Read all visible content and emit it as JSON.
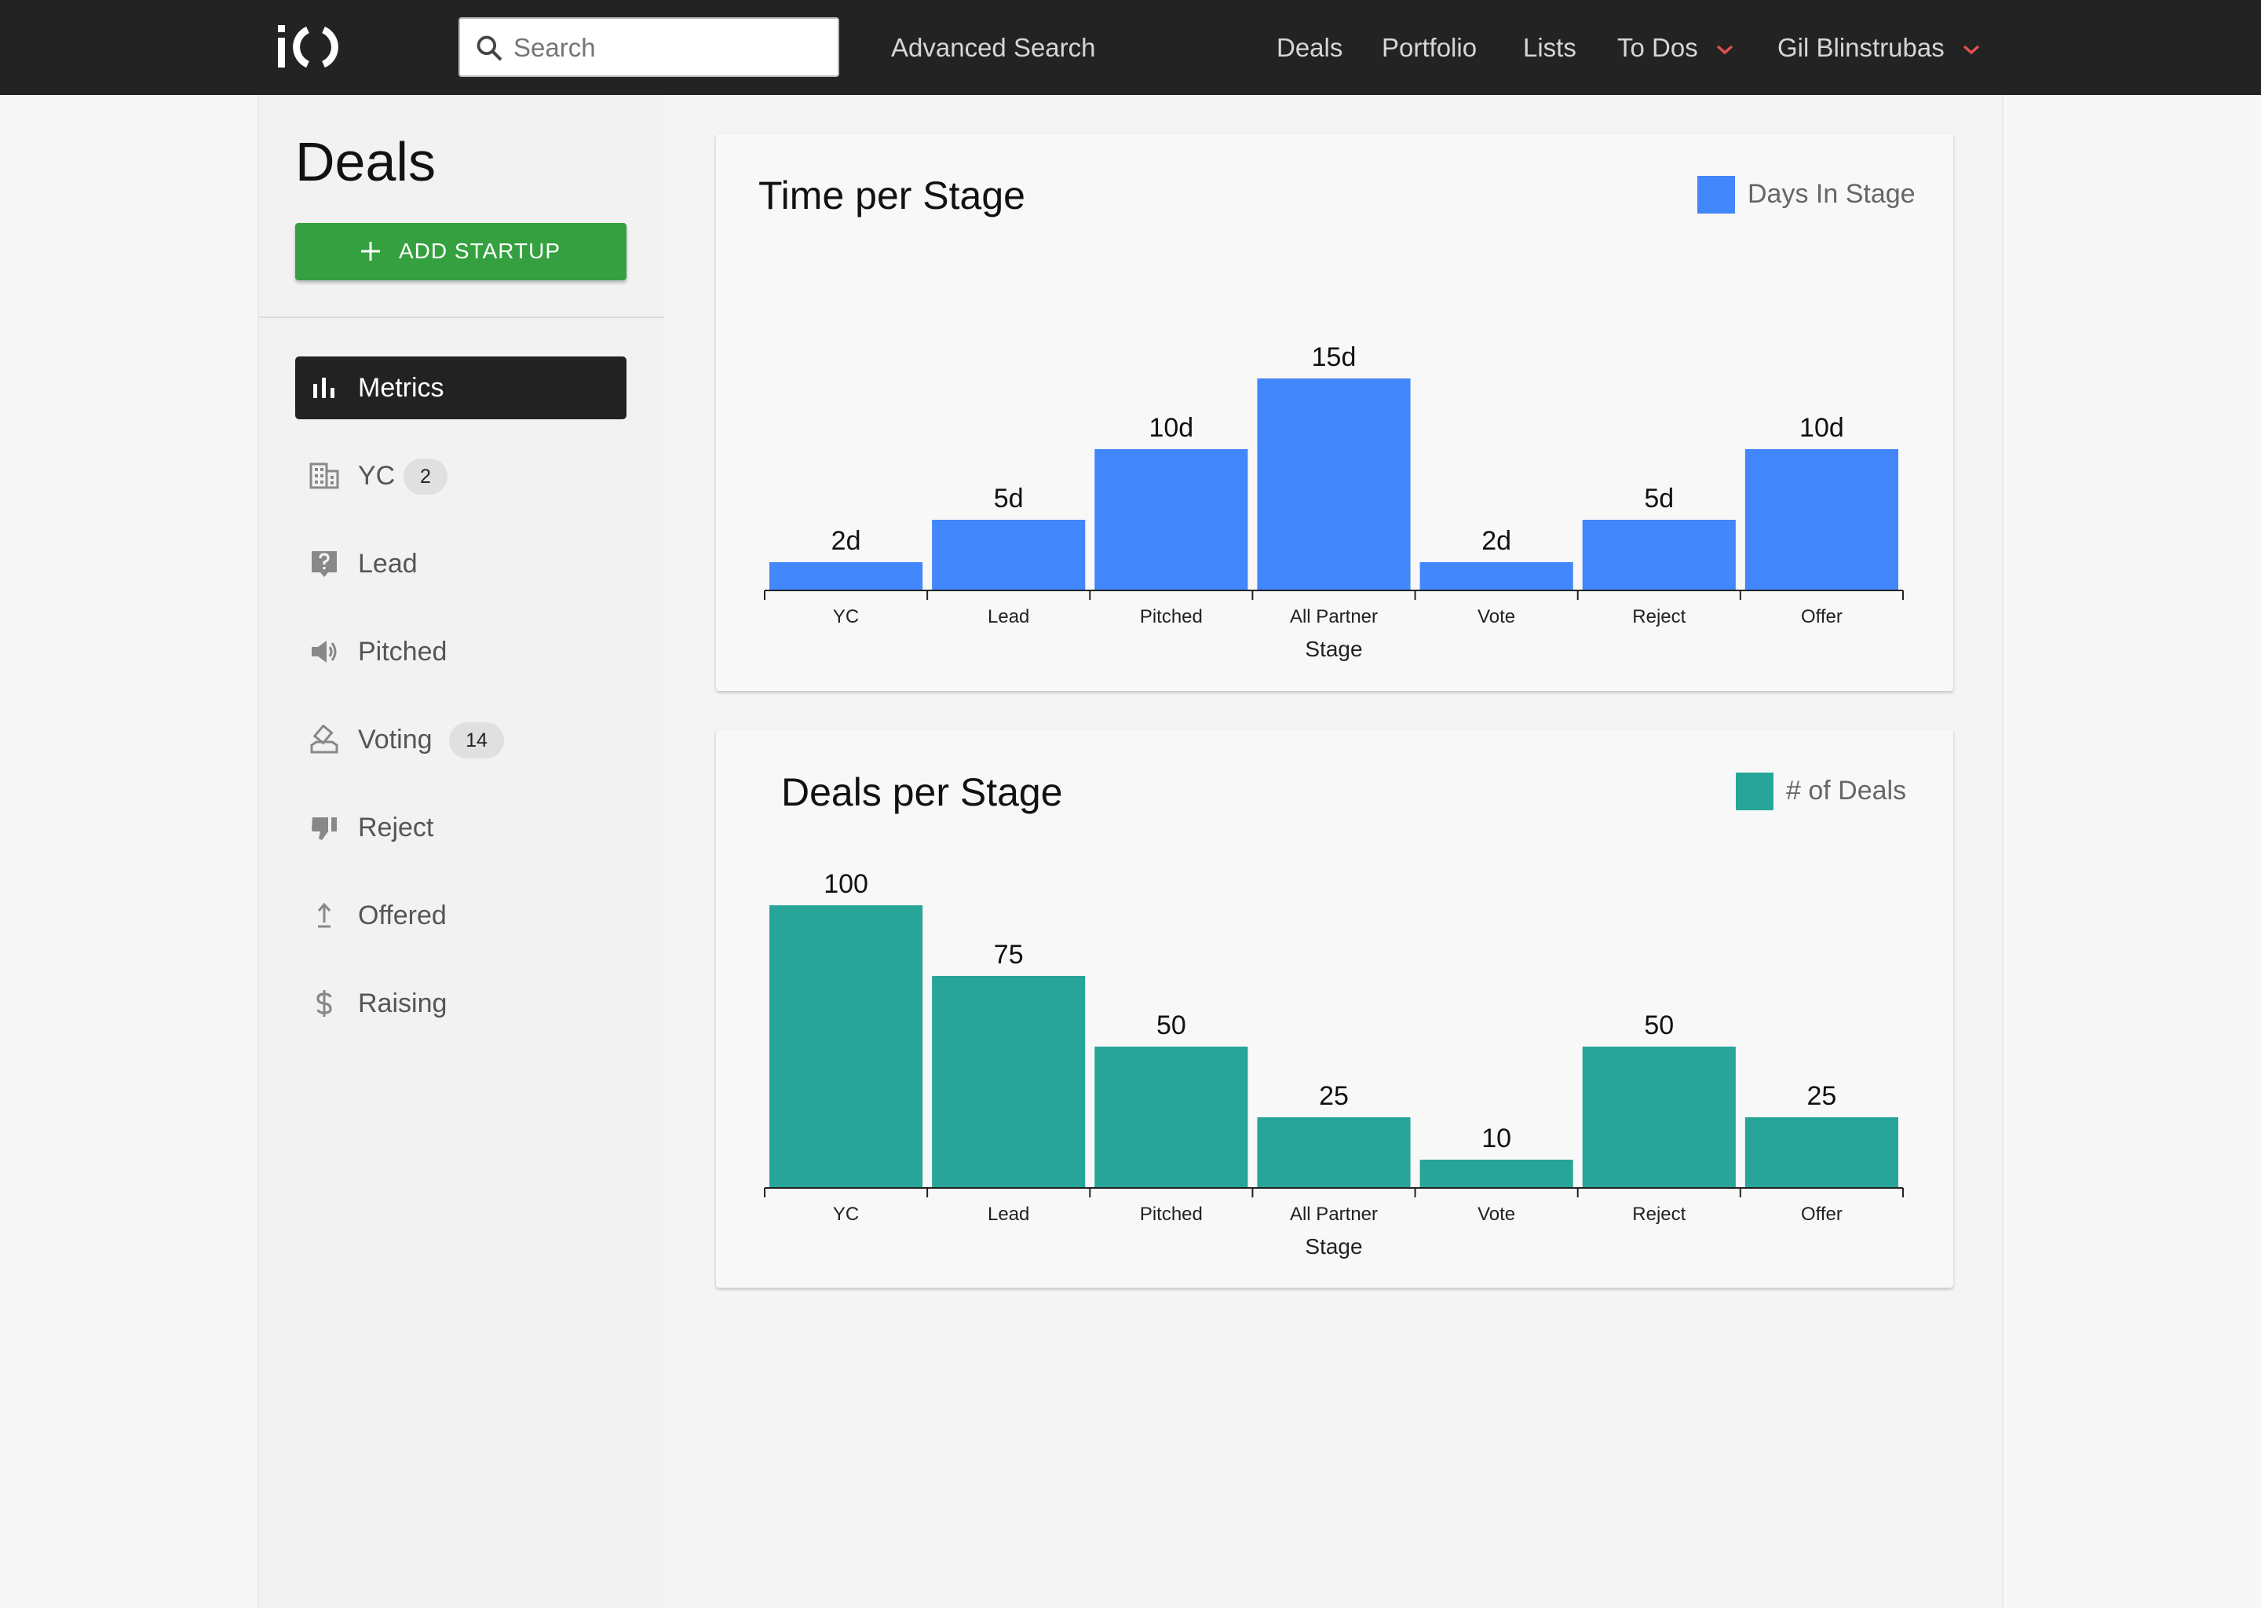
{
  "header": {
    "logo_text": "iO",
    "search_placeholder": "Search",
    "nav": {
      "advanced_search": "Advanced Search",
      "deals": "Deals",
      "portfolio": "Portfolio",
      "lists": "Lists",
      "todos": "To Dos",
      "user": "Gil Blinstrubas"
    }
  },
  "sidebar": {
    "title": "Deals",
    "add_button": "ADD STARTUP",
    "items": [
      {
        "label": "Metrics",
        "icon": "bar-chart-icon",
        "active": true
      },
      {
        "label": "YC",
        "icon": "building-icon",
        "badge": "2"
      },
      {
        "label": "Lead",
        "icon": "question-icon"
      },
      {
        "label": "Pitched",
        "icon": "megaphone-icon"
      },
      {
        "label": "Voting",
        "icon": "ballot-icon",
        "badge": "14"
      },
      {
        "label": "Reject",
        "icon": "thumbs-down-icon"
      },
      {
        "label": "Offered",
        "icon": "upload-arrow-icon"
      },
      {
        "label": "Raising",
        "icon": "dollar-icon"
      }
    ]
  },
  "colors": {
    "accent_green": "#35a03f",
    "time_bar": "#4287fb",
    "deals_bar": "#27a598",
    "nav_caret": "#e05050"
  },
  "chart_data": [
    {
      "type": "bar",
      "title": "Time per Stage",
      "legend": "Days In Stage",
      "xlabel": "Stage",
      "ylabel": "",
      "categories": [
        "YC",
        "Lead",
        "Pitched",
        "All Partner",
        "Vote",
        "Reject",
        "Offer"
      ],
      "values": [
        2,
        5,
        10,
        15,
        2,
        5,
        10
      ],
      "value_labels": [
        "2d",
        "5d",
        "10d",
        "15d",
        "2d",
        "5d",
        "10d"
      ],
      "ylim": [
        0,
        15
      ]
    },
    {
      "type": "bar",
      "title": "Deals per Stage",
      "legend": "# of Deals",
      "xlabel": "Stage",
      "ylabel": "",
      "categories": [
        "YC",
        "Lead",
        "Pitched",
        "All Partner",
        "Vote",
        "Reject",
        "Offer"
      ],
      "values": [
        100,
        75,
        50,
        25,
        10,
        50,
        25
      ],
      "value_labels": [
        "100",
        "75",
        "50",
        "25",
        "10",
        "50",
        "25"
      ],
      "ylim": [
        0,
        100
      ]
    }
  ]
}
